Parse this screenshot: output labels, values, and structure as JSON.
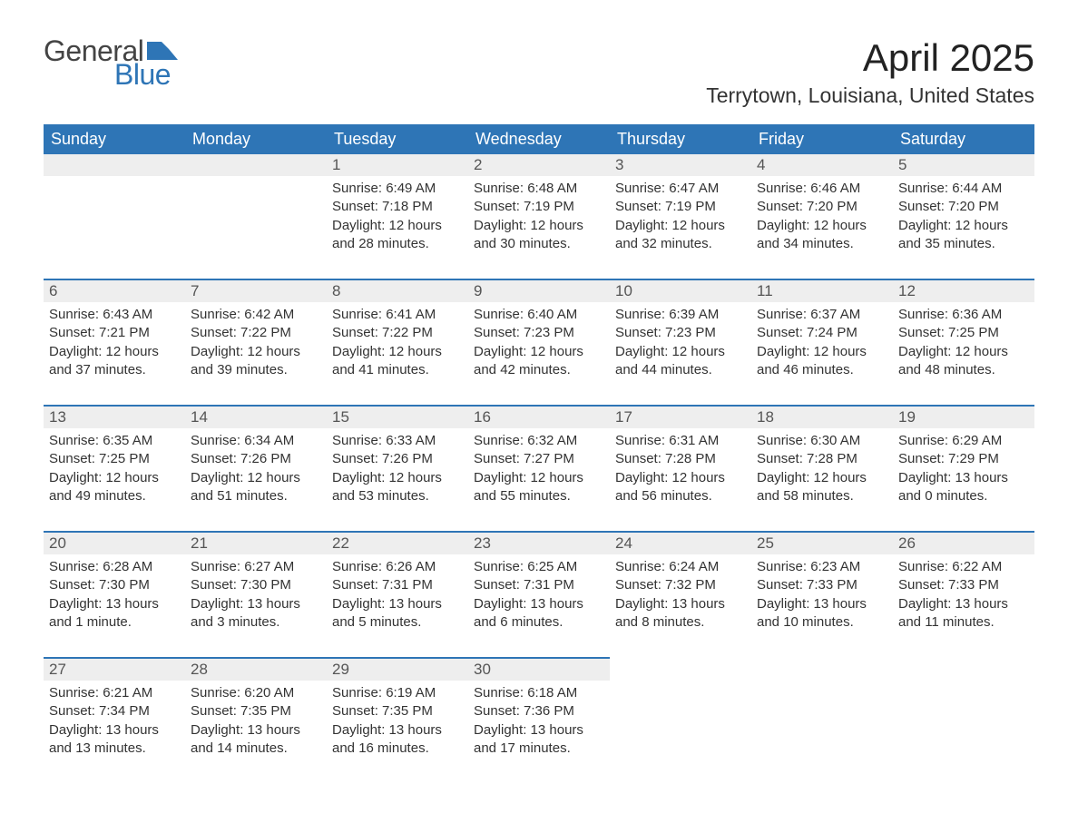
{
  "logo": {
    "word1": "General",
    "word2": "Blue",
    "flag_color": "#2e75b6",
    "text_gray": "#444444"
  },
  "title": "April 2025",
  "location": "Terrytown, Louisiana, United States",
  "colors": {
    "header_bg": "#2e75b6",
    "header_text": "#ffffff",
    "daynum_bg": "#eeeeee",
    "daynum_text": "#555555",
    "body_text": "#333333",
    "row_border": "#2e75b6",
    "page_bg": "#ffffff"
  },
  "day_headers": [
    "Sunday",
    "Monday",
    "Tuesday",
    "Wednesday",
    "Thursday",
    "Friday",
    "Saturday"
  ],
  "weeks": [
    [
      null,
      null,
      {
        "n": "1",
        "sunrise": "Sunrise: 6:49 AM",
        "sunset": "Sunset: 7:18 PM",
        "day1": "Daylight: 12 hours",
        "day2": "and 28 minutes."
      },
      {
        "n": "2",
        "sunrise": "Sunrise: 6:48 AM",
        "sunset": "Sunset: 7:19 PM",
        "day1": "Daylight: 12 hours",
        "day2": "and 30 minutes."
      },
      {
        "n": "3",
        "sunrise": "Sunrise: 6:47 AM",
        "sunset": "Sunset: 7:19 PM",
        "day1": "Daylight: 12 hours",
        "day2": "and 32 minutes."
      },
      {
        "n": "4",
        "sunrise": "Sunrise: 6:46 AM",
        "sunset": "Sunset: 7:20 PM",
        "day1": "Daylight: 12 hours",
        "day2": "and 34 minutes."
      },
      {
        "n": "5",
        "sunrise": "Sunrise: 6:44 AM",
        "sunset": "Sunset: 7:20 PM",
        "day1": "Daylight: 12 hours",
        "day2": "and 35 minutes."
      }
    ],
    [
      {
        "n": "6",
        "sunrise": "Sunrise: 6:43 AM",
        "sunset": "Sunset: 7:21 PM",
        "day1": "Daylight: 12 hours",
        "day2": "and 37 minutes."
      },
      {
        "n": "7",
        "sunrise": "Sunrise: 6:42 AM",
        "sunset": "Sunset: 7:22 PM",
        "day1": "Daylight: 12 hours",
        "day2": "and 39 minutes."
      },
      {
        "n": "8",
        "sunrise": "Sunrise: 6:41 AM",
        "sunset": "Sunset: 7:22 PM",
        "day1": "Daylight: 12 hours",
        "day2": "and 41 minutes."
      },
      {
        "n": "9",
        "sunrise": "Sunrise: 6:40 AM",
        "sunset": "Sunset: 7:23 PM",
        "day1": "Daylight: 12 hours",
        "day2": "and 42 minutes."
      },
      {
        "n": "10",
        "sunrise": "Sunrise: 6:39 AM",
        "sunset": "Sunset: 7:23 PM",
        "day1": "Daylight: 12 hours",
        "day2": "and 44 minutes."
      },
      {
        "n": "11",
        "sunrise": "Sunrise: 6:37 AM",
        "sunset": "Sunset: 7:24 PM",
        "day1": "Daylight: 12 hours",
        "day2": "and 46 minutes."
      },
      {
        "n": "12",
        "sunrise": "Sunrise: 6:36 AM",
        "sunset": "Sunset: 7:25 PM",
        "day1": "Daylight: 12 hours",
        "day2": "and 48 minutes."
      }
    ],
    [
      {
        "n": "13",
        "sunrise": "Sunrise: 6:35 AM",
        "sunset": "Sunset: 7:25 PM",
        "day1": "Daylight: 12 hours",
        "day2": "and 49 minutes."
      },
      {
        "n": "14",
        "sunrise": "Sunrise: 6:34 AM",
        "sunset": "Sunset: 7:26 PM",
        "day1": "Daylight: 12 hours",
        "day2": "and 51 minutes."
      },
      {
        "n": "15",
        "sunrise": "Sunrise: 6:33 AM",
        "sunset": "Sunset: 7:26 PM",
        "day1": "Daylight: 12 hours",
        "day2": "and 53 minutes."
      },
      {
        "n": "16",
        "sunrise": "Sunrise: 6:32 AM",
        "sunset": "Sunset: 7:27 PM",
        "day1": "Daylight: 12 hours",
        "day2": "and 55 minutes."
      },
      {
        "n": "17",
        "sunrise": "Sunrise: 6:31 AM",
        "sunset": "Sunset: 7:28 PM",
        "day1": "Daylight: 12 hours",
        "day2": "and 56 minutes."
      },
      {
        "n": "18",
        "sunrise": "Sunrise: 6:30 AM",
        "sunset": "Sunset: 7:28 PM",
        "day1": "Daylight: 12 hours",
        "day2": "and 58 minutes."
      },
      {
        "n": "19",
        "sunrise": "Sunrise: 6:29 AM",
        "sunset": "Sunset: 7:29 PM",
        "day1": "Daylight: 13 hours",
        "day2": "and 0 minutes."
      }
    ],
    [
      {
        "n": "20",
        "sunrise": "Sunrise: 6:28 AM",
        "sunset": "Sunset: 7:30 PM",
        "day1": "Daylight: 13 hours",
        "day2": "and 1 minute."
      },
      {
        "n": "21",
        "sunrise": "Sunrise: 6:27 AM",
        "sunset": "Sunset: 7:30 PM",
        "day1": "Daylight: 13 hours",
        "day2": "and 3 minutes."
      },
      {
        "n": "22",
        "sunrise": "Sunrise: 6:26 AM",
        "sunset": "Sunset: 7:31 PM",
        "day1": "Daylight: 13 hours",
        "day2": "and 5 minutes."
      },
      {
        "n": "23",
        "sunrise": "Sunrise: 6:25 AM",
        "sunset": "Sunset: 7:31 PM",
        "day1": "Daylight: 13 hours",
        "day2": "and 6 minutes."
      },
      {
        "n": "24",
        "sunrise": "Sunrise: 6:24 AM",
        "sunset": "Sunset: 7:32 PM",
        "day1": "Daylight: 13 hours",
        "day2": "and 8 minutes."
      },
      {
        "n": "25",
        "sunrise": "Sunrise: 6:23 AM",
        "sunset": "Sunset: 7:33 PM",
        "day1": "Daylight: 13 hours",
        "day2": "and 10 minutes."
      },
      {
        "n": "26",
        "sunrise": "Sunrise: 6:22 AM",
        "sunset": "Sunset: 7:33 PM",
        "day1": "Daylight: 13 hours",
        "day2": "and 11 minutes."
      }
    ],
    [
      {
        "n": "27",
        "sunrise": "Sunrise: 6:21 AM",
        "sunset": "Sunset: 7:34 PM",
        "day1": "Daylight: 13 hours",
        "day2": "and 13 minutes."
      },
      {
        "n": "28",
        "sunrise": "Sunrise: 6:20 AM",
        "sunset": "Sunset: 7:35 PM",
        "day1": "Daylight: 13 hours",
        "day2": "and 14 minutes."
      },
      {
        "n": "29",
        "sunrise": "Sunrise: 6:19 AM",
        "sunset": "Sunset: 7:35 PM",
        "day1": "Daylight: 13 hours",
        "day2": "and 16 minutes."
      },
      {
        "n": "30",
        "sunrise": "Sunrise: 6:18 AM",
        "sunset": "Sunset: 7:36 PM",
        "day1": "Daylight: 13 hours",
        "day2": "and 17 minutes."
      },
      null,
      null,
      null
    ]
  ]
}
